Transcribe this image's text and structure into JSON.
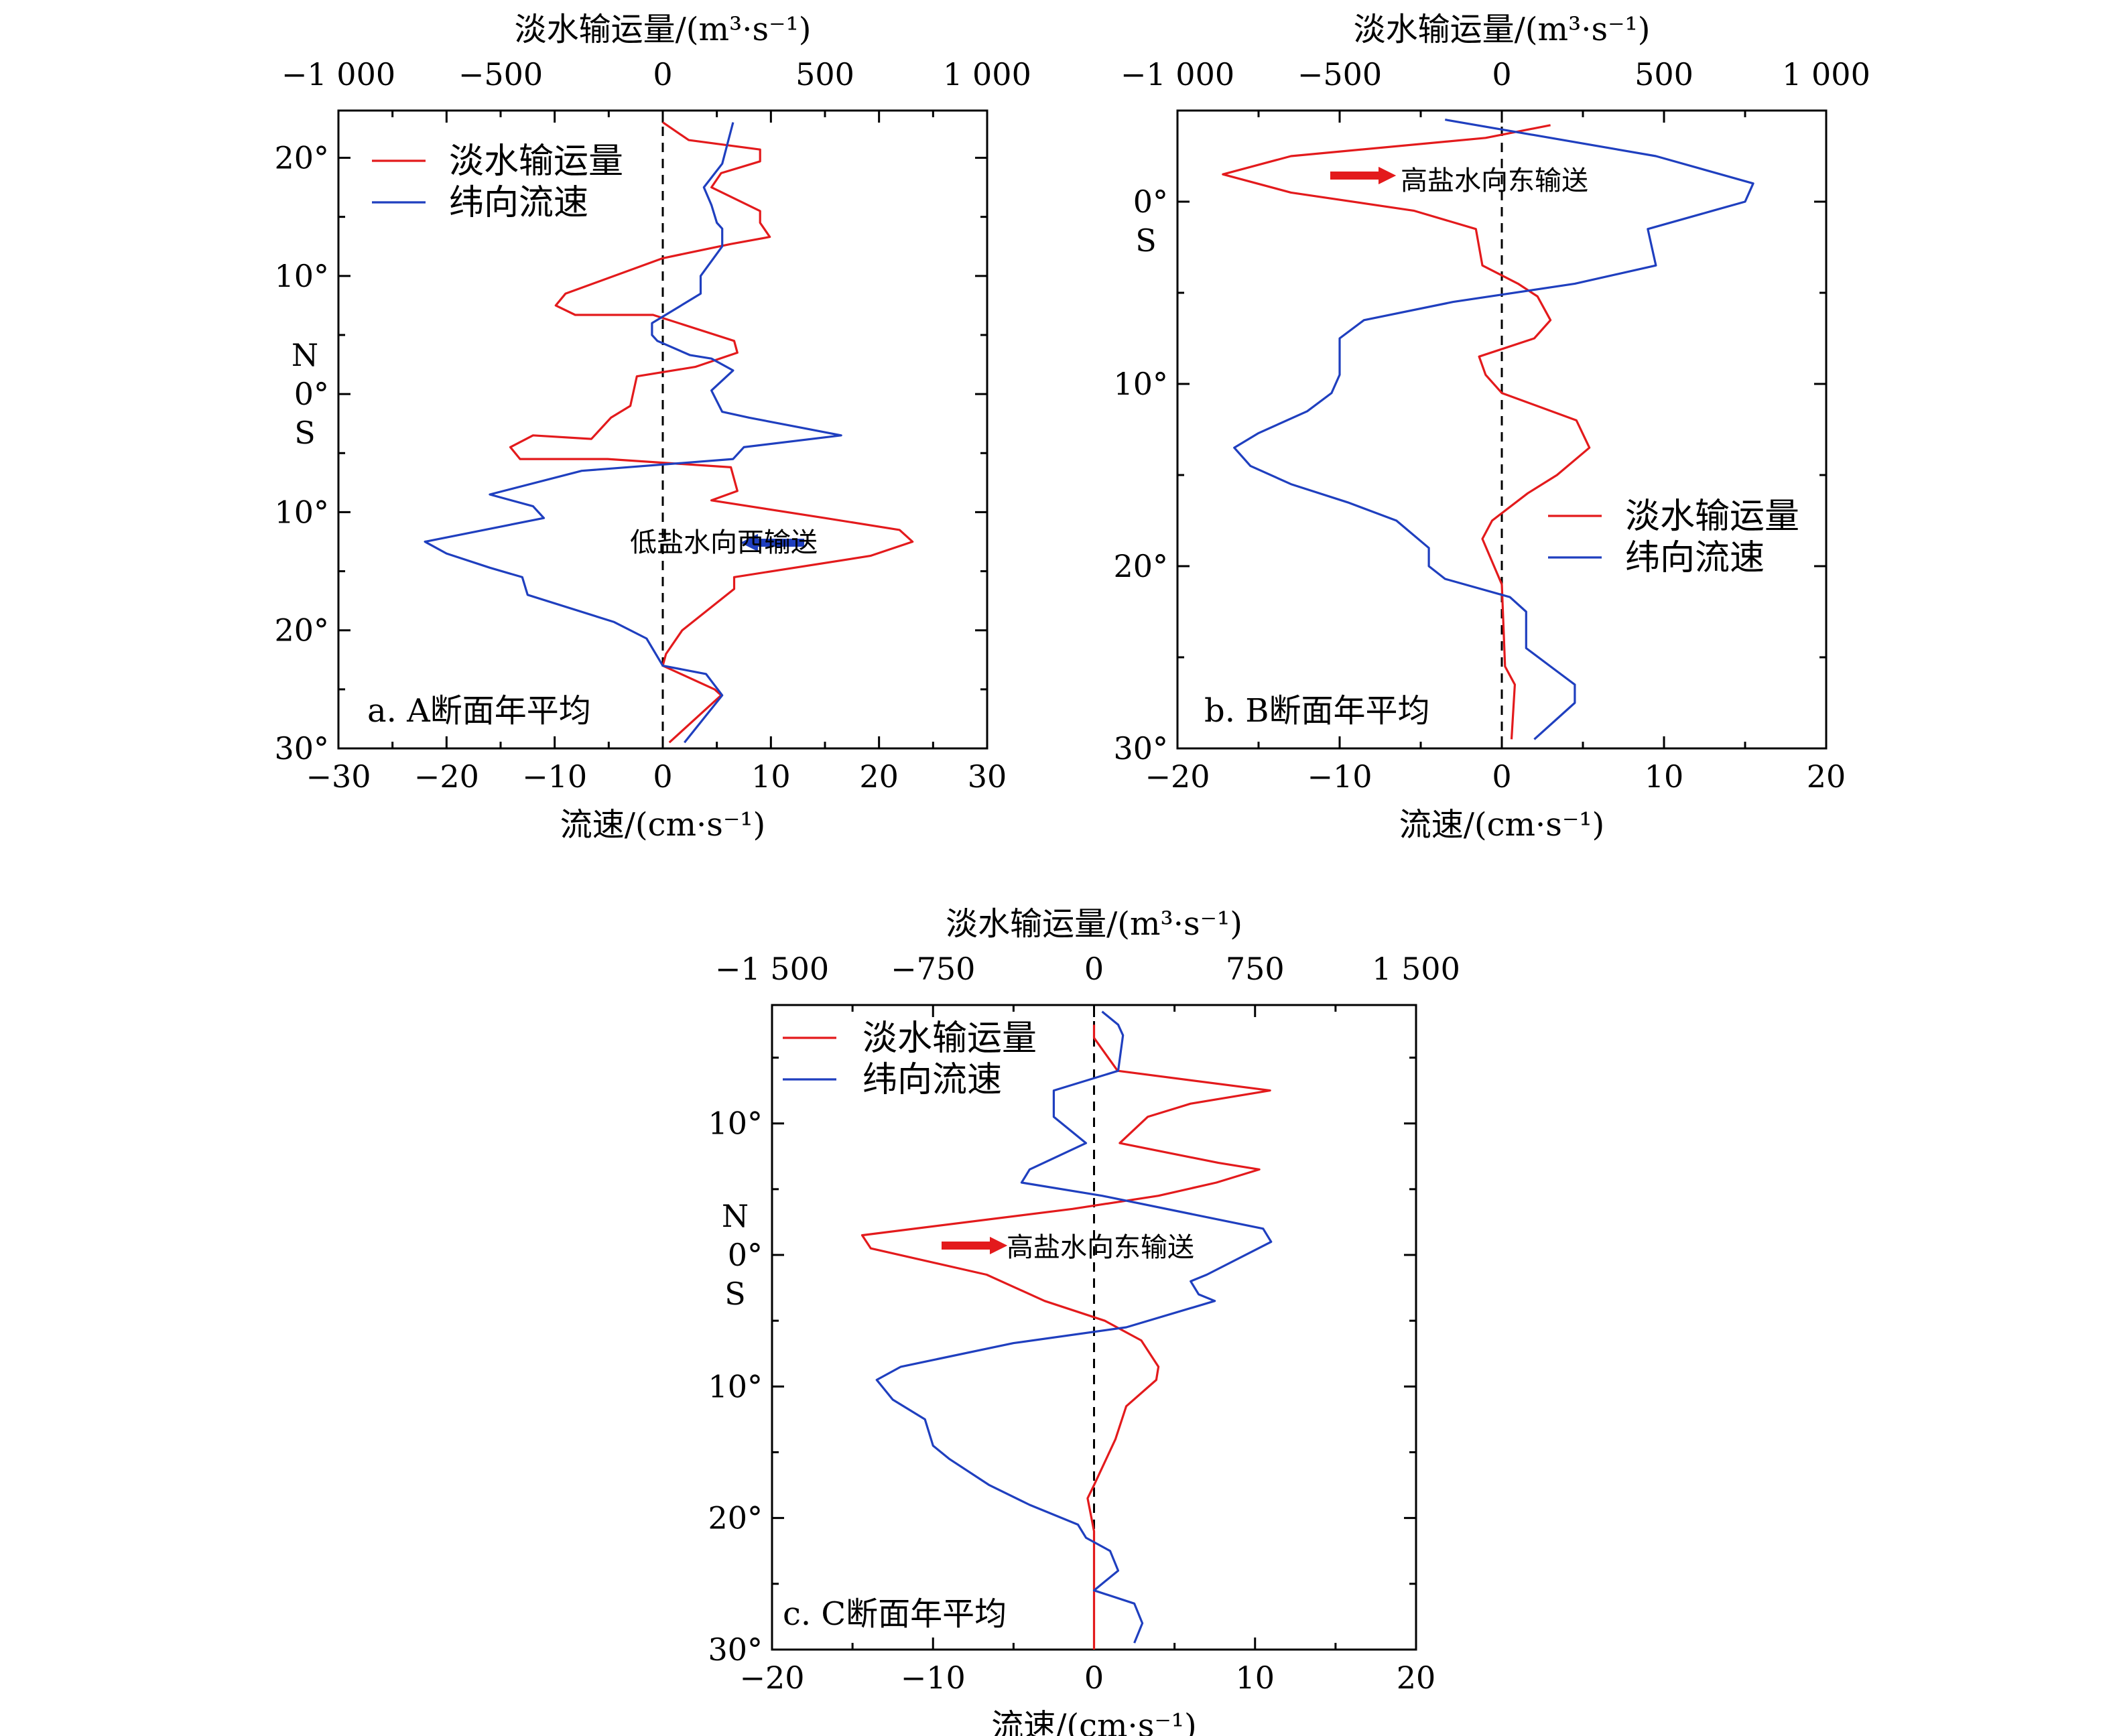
{
  "chart_data": [
    {
      "id": "A",
      "type": "line",
      "panel_title": "a. A断面年平均",
      "top_axis": {
        "label": "淡水输运量/(m³·s⁻¹)",
        "range": [
          -1000,
          1000
        ],
        "ticks": [
          -1000,
          -500,
          0,
          500,
          1000
        ],
        "tick_labels": [
          "−1 000",
          "−500",
          "0",
          "500",
          "1 000"
        ]
      },
      "bottom_axis": {
        "label": "流速/(cm·s⁻¹)",
        "range": [
          -30,
          30
        ],
        "ticks": [
          -30,
          -20,
          -10,
          0,
          10,
          20,
          30
        ],
        "tick_labels": [
          "−30",
          "−20",
          "−10",
          "0",
          "10",
          "20",
          "30"
        ]
      },
      "y_axis": {
        "range_latitude": [
          24,
          -30
        ],
        "ticks": [
          {
            "lat": 20,
            "label": "20°"
          },
          {
            "lat": 10,
            "label": "10°"
          },
          {
            "lat": 0,
            "label": "0°"
          },
          {
            "lat": -10,
            "label": "10°"
          },
          {
            "lat": -20,
            "label": "20°"
          },
          {
            "lat": -30,
            "label": "30°"
          }
        ],
        "n_label": "N",
        "s_label": "S"
      },
      "legend": {
        "position": "top-left",
        "items": [
          "淡水输运量",
          "纬向流速"
        ]
      },
      "annotation": {
        "text": "低盐水向西输送",
        "arrow": "blue-left"
      },
      "series": [
        {
          "name": "淡水输运量",
          "color": "#e31a1c",
          "axis": "top",
          "points": [
            [
              0,
              23
            ],
            [
              80,
              21.5
            ],
            [
              300,
              20.7
            ],
            [
              300,
              19.7
            ],
            [
              180,
              18.7
            ],
            [
              150,
              17.5
            ],
            [
              300,
              15.5
            ],
            [
              300,
              14.5
            ],
            [
              330,
              13.3
            ],
            [
              210,
              12.7
            ],
            [
              0,
              11.5
            ],
            [
              -300,
              8.5
            ],
            [
              -330,
              7.5
            ],
            [
              -270,
              6.7
            ],
            [
              -30,
              6.7
            ],
            [
              220,
              4.5
            ],
            [
              230,
              3.5
            ],
            [
              100,
              2.3
            ],
            [
              -80,
              1.5
            ],
            [
              -100,
              -1.0
            ],
            [
              -160,
              -2.0
            ],
            [
              -220,
              -3.8
            ],
            [
              -400,
              -3.5
            ],
            [
              -470,
              -4.5
            ],
            [
              -440,
              -5.5
            ],
            [
              -170,
              -5.5
            ],
            [
              210,
              -6.2
            ],
            [
              230,
              -8.2
            ],
            [
              150,
              -9.0
            ],
            [
              500,
              -10.5
            ],
            [
              730,
              -11.5
            ],
            [
              770,
              -12.5
            ],
            [
              640,
              -13.7
            ],
            [
              220,
              -15.5
            ],
            [
              220,
              -16.5
            ],
            [
              60,
              -20.0
            ],
            [
              10,
              -22.0
            ],
            [
              0,
              -23.0
            ],
            [
              160,
              -25.0
            ],
            [
              180,
              -25.5
            ],
            [
              20,
              -29.5
            ]
          ]
        },
        {
          "name": "纬向流速",
          "color": "#1f3fbf",
          "axis": "bottom",
          "points": [
            [
              6.5,
              23
            ],
            [
              5.5,
              19.5
            ],
            [
              3.8,
              17.5
            ],
            [
              4.5,
              16.0
            ],
            [
              5.0,
              14.5
            ],
            [
              5.5,
              14.0
            ],
            [
              5.5,
              12.5
            ],
            [
              3.5,
              10.0
            ],
            [
              3.5,
              8.5
            ],
            [
              -1.0,
              6.0
            ],
            [
              -1.0,
              5.0
            ],
            [
              -0.5,
              4.5
            ],
            [
              2.5,
              3.3
            ],
            [
              4.5,
              3.0
            ],
            [
              6.5,
              2.0
            ],
            [
              4.5,
              0.3
            ],
            [
              5.5,
              -1.5
            ],
            [
              8.0,
              -2.0
            ],
            [
              16.5,
              -3.5
            ],
            [
              7.5,
              -4.5
            ],
            [
              6.5,
              -5.5
            ],
            [
              -7.5,
              -6.5
            ],
            [
              -16.0,
              -8.5
            ],
            [
              -12.0,
              -9.5
            ],
            [
              -11.0,
              -10.5
            ],
            [
              -22.0,
              -12.5
            ],
            [
              -20.0,
              -13.5
            ],
            [
              -16.0,
              -14.7
            ],
            [
              -13.0,
              -15.5
            ],
            [
              -12.5,
              -17.0
            ],
            [
              -4.5,
              -19.3
            ],
            [
              -1.5,
              -20.7
            ],
            [
              0,
              -23.0
            ],
            [
              4.0,
              -23.7
            ],
            [
              5.5,
              -25.5
            ],
            [
              2.0,
              -29.5
            ]
          ]
        }
      ]
    },
    {
      "id": "B",
      "type": "line",
      "panel_title": "b. B断面年平均",
      "top_axis": {
        "label": "淡水输运量/(m³·s⁻¹)",
        "range": [
          -1000,
          1000
        ],
        "ticks": [
          -1000,
          -500,
          0,
          500,
          1000
        ],
        "tick_labels": [
          "−1 000",
          "−500",
          "0",
          "500",
          "1 000"
        ]
      },
      "bottom_axis": {
        "label": "流速/(cm·s⁻¹)",
        "range": [
          -20,
          20
        ],
        "ticks": [
          -20,
          -10,
          0,
          10,
          20
        ],
        "tick_labels": [
          "−20",
          "−10",
          "0",
          "10",
          "20"
        ]
      },
      "y_axis": {
        "range_latitude": [
          5,
          -30
        ],
        "ticks": [
          {
            "lat": 0,
            "label": "0°"
          },
          {
            "lat": -10,
            "label": "10°"
          },
          {
            "lat": -20,
            "label": "20°"
          },
          {
            "lat": -30,
            "label": "30°"
          }
        ],
        "n_label": "",
        "s_label": "S"
      },
      "legend": {
        "position": "right",
        "items": [
          "淡水输运量",
          "纬向流速"
        ]
      },
      "annotation": {
        "text": "高盐水向东输送",
        "arrow": "red-right"
      },
      "series": [
        {
          "name": "淡水输运量",
          "color": "#e31a1c",
          "axis": "top",
          "points": [
            [
              150,
              4.2
            ],
            [
              -50,
              3.5
            ],
            [
              -650,
              2.5
            ],
            [
              -860,
              1.5
            ],
            [
              -650,
              0.5
            ],
            [
              -270,
              -0.5
            ],
            [
              -80,
              -1.5
            ],
            [
              -60,
              -3.5
            ],
            [
              50,
              -4.5
            ],
            [
              110,
              -5.2
            ],
            [
              150,
              -6.5
            ],
            [
              100,
              -7.5
            ],
            [
              -70,
              -8.5
            ],
            [
              -50,
              -9.5
            ],
            [
              0,
              -10.5
            ],
            [
              230,
              -12.0
            ],
            [
              270,
              -13.5
            ],
            [
              170,
              -15.0
            ],
            [
              80,
              -16.0
            ],
            [
              -30,
              -17.5
            ],
            [
              -60,
              -18.5
            ],
            [
              0,
              -21.0
            ],
            [
              10,
              -25.5
            ],
            [
              40,
              -26.5
            ],
            [
              30,
              -29.5
            ]
          ]
        },
        {
          "name": "纬向流速",
          "color": "#1f3fbf",
          "axis": "bottom",
          "points": [
            [
              -3.5,
              4.5
            ],
            [
              9.5,
              2.5
            ],
            [
              15.5,
              1.0
            ],
            [
              15.0,
              0
            ],
            [
              13.0,
              -0.5
            ],
            [
              9.0,
              -1.5
            ],
            [
              9.5,
              -3.5
            ],
            [
              4.5,
              -4.5
            ],
            [
              -3.0,
              -5.5
            ],
            [
              -8.5,
              -6.5
            ],
            [
              -10.0,
              -7.5
            ],
            [
              -10.0,
              -9.5
            ],
            [
              -10.5,
              -10.5
            ],
            [
              -12.0,
              -11.5
            ],
            [
              -15.0,
              -12.7
            ],
            [
              -16.5,
              -13.5
            ],
            [
              -15.5,
              -14.5
            ],
            [
              -13.0,
              -15.5
            ],
            [
              -9.5,
              -16.5
            ],
            [
              -6.5,
              -17.5
            ],
            [
              -4.5,
              -19.0
            ],
            [
              -4.5,
              -20.0
            ],
            [
              -3.5,
              -20.7
            ],
            [
              0.5,
              -21.7
            ],
            [
              1.5,
              -22.5
            ],
            [
              1.5,
              -24.5
            ],
            [
              3.0,
              -25.5
            ],
            [
              4.5,
              -26.5
            ],
            [
              4.5,
              -27.5
            ],
            [
              2.0,
              -29.5
            ]
          ]
        }
      ]
    },
    {
      "id": "C",
      "type": "line",
      "panel_title": "c. C断面年平均",
      "top_axis": {
        "label": "淡水输运量/(m³·s⁻¹)",
        "range": [
          -1500,
          1500
        ],
        "ticks": [
          -1500,
          -750,
          0,
          750,
          1500
        ],
        "tick_labels": [
          "−1 500",
          "−750",
          "0",
          "750",
          "1 500"
        ]
      },
      "bottom_axis": {
        "label": "流速/(cm·s⁻¹)",
        "range": [
          -20,
          20
        ],
        "ticks": [
          -20,
          -10,
          0,
          10,
          20
        ],
        "tick_labels": [
          "−20",
          "−10",
          "0",
          "10",
          "20"
        ]
      },
      "y_axis": {
        "range_latitude": [
          19,
          -30
        ],
        "ticks": [
          {
            "lat": 10,
            "label": "10°"
          },
          {
            "lat": 0,
            "label": "0°"
          },
          {
            "lat": -10,
            "label": "10°"
          },
          {
            "lat": -20,
            "label": "20°"
          },
          {
            "lat": -30,
            "label": "30°"
          }
        ],
        "n_label": "N",
        "s_label": "S"
      },
      "legend": {
        "position": "top-left",
        "items": [
          "淡水输运量",
          "纬向流速"
        ]
      },
      "annotation": {
        "text": "高盐水向东输送",
        "arrow": "red-right"
      },
      "series": [
        {
          "name": "淡水输运量",
          "color": "#e31a1c",
          "axis": "top",
          "points": [
            [
              0,
              17.5
            ],
            [
              0,
              16.5
            ],
            [
              110,
              14.0
            ],
            [
              820,
              12.5
            ],
            [
              450,
              11.5
            ],
            [
              250,
              10.5
            ],
            [
              120,
              8.5
            ],
            [
              580,
              7.0
            ],
            [
              770,
              6.5
            ],
            [
              570,
              5.5
            ],
            [
              300,
              4.5
            ],
            [
              -100,
              3.5
            ],
            [
              -1080,
              1.5
            ],
            [
              -1040,
              0.5
            ],
            [
              -500,
              -1.5
            ],
            [
              -230,
              -3.5
            ],
            [
              50,
              -5.0
            ],
            [
              220,
              -6.5
            ],
            [
              300,
              -8.5
            ],
            [
              290,
              -9.5
            ],
            [
              150,
              -11.5
            ],
            [
              100,
              -14.0
            ],
            [
              0,
              -17.5
            ],
            [
              -30,
              -18.5
            ],
            [
              0,
              -21.0
            ],
            [
              0,
              -25.5
            ],
            [
              0,
              -30.0
            ]
          ]
        },
        {
          "name": "纬向流速",
          "color": "#1f3fbf",
          "axis": "bottom",
          "points": [
            [
              0.5,
              18.5
            ],
            [
              1.5,
              17.5
            ],
            [
              1.8,
              16.7
            ],
            [
              1.5,
              14.0
            ],
            [
              -2.5,
              12.5
            ],
            [
              -2.5,
              10.5
            ],
            [
              -0.5,
              8.5
            ],
            [
              -4.0,
              6.5
            ],
            [
              -4.5,
              5.5
            ],
            [
              0.5,
              4.5
            ],
            [
              10.5,
              2.0
            ],
            [
              11.0,
              1.0
            ],
            [
              7.0,
              -1.5
            ],
            [
              6.0,
              -2.0
            ],
            [
              6.5,
              -3.0
            ],
            [
              7.5,
              -3.5
            ],
            [
              2.0,
              -5.5
            ],
            [
              -5.0,
              -6.7
            ],
            [
              -12.0,
              -8.5
            ],
            [
              -13.5,
              -9.5
            ],
            [
              -12.5,
              -11.0
            ],
            [
              -10.5,
              -12.5
            ],
            [
              -10.0,
              -14.5
            ],
            [
              -9.0,
              -15.5
            ],
            [
              -6.5,
              -17.5
            ],
            [
              -4.0,
              -19.0
            ],
            [
              -1.0,
              -20.5
            ],
            [
              -0.5,
              -21.5
            ],
            [
              1.0,
              -22.5
            ],
            [
              1.5,
              -24.0
            ],
            [
              0,
              -25.5
            ],
            [
              2.5,
              -26.5
            ],
            [
              3.0,
              -28.0
            ],
            [
              2.5,
              -29.5
            ]
          ]
        }
      ]
    }
  ]
}
